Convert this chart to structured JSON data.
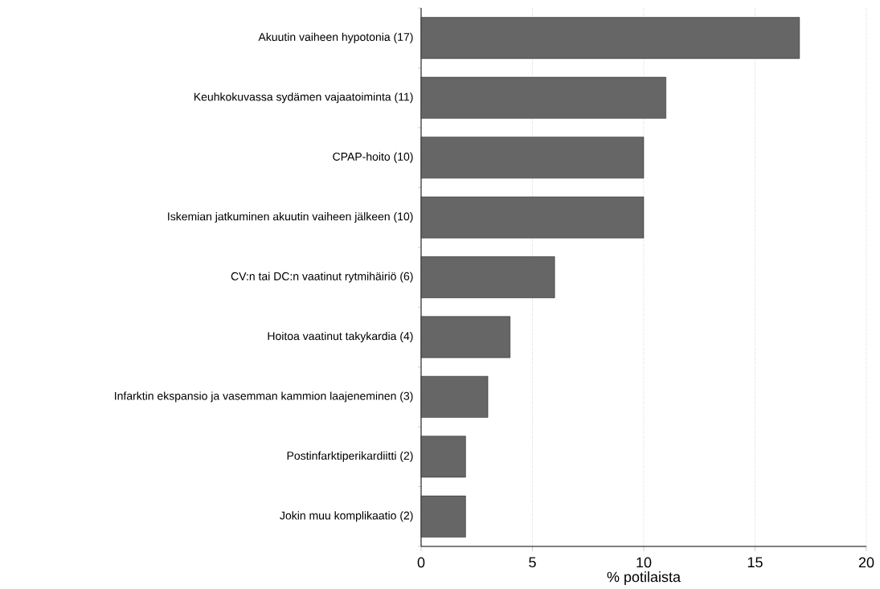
{
  "chart_data": {
    "type": "bar",
    "orientation": "horizontal",
    "categories": [
      "Akuutin vaiheen hypotonia (17)",
      "Keuhkokuvassa sydämen vajaatoiminta (11)",
      "CPAP-hoito (10)",
      "Iskemian jatkuminen akuutin vaiheen jälkeen (10)",
      "CV:n tai DC:n vaatinut rytmihäiriö (6)",
      "Hoitoa vaatinut takykardia (4)",
      "Infarktin ekspansio ja vasemman kammion laajeneminen (3)",
      "Postinfarktiperikardiitti (2)",
      "Jokin muu komplikaatio (2)"
    ],
    "values": [
      17,
      11,
      10,
      10,
      6,
      4,
      3,
      2,
      2
    ],
    "color": "#666666",
    "xlabel": "% potilaista",
    "xlim": [
      0,
      20
    ],
    "xticks": [
      0,
      5,
      10,
      15,
      20
    ],
    "grid": "x"
  }
}
